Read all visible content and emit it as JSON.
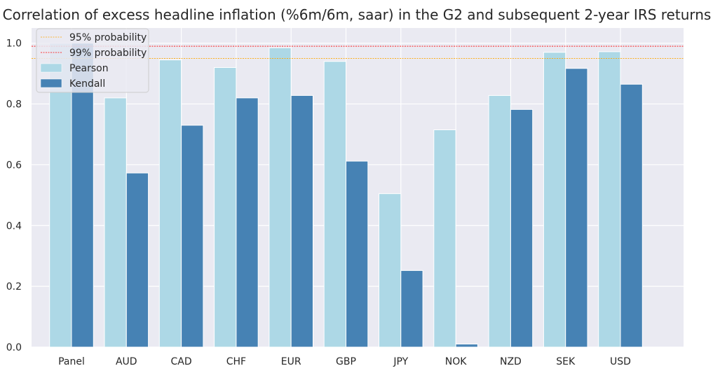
{
  "chart_data": {
    "type": "bar",
    "title": "Correlation of excess headline inflation (%6m/6m, saar) in the G2 and subsequent 2-year IRS returns",
    "xlabel": "",
    "ylabel": "",
    "categories": [
      "Panel",
      "AUD",
      "CAD",
      "CHF",
      "EUR",
      "GBP",
      "JPY",
      "NOK",
      "NZD",
      "SEK",
      "USD"
    ],
    "series": [
      {
        "name": "Pearson",
        "color": "#add8e6",
        "values": [
          1.0,
          0.82,
          0.945,
          0.92,
          0.985,
          0.94,
          0.505,
          0.715,
          0.828,
          0.97,
          0.972
        ]
      },
      {
        "name": "Kendall",
        "color": "#4682b4",
        "values": [
          1.0,
          0.573,
          0.73,
          0.82,
          0.828,
          0.612,
          0.252,
          0.01,
          0.782,
          0.917,
          0.865
        ]
      }
    ],
    "reference_lines": [
      {
        "name": "95% probability",
        "value": 0.95,
        "color": "#ffa500"
      },
      {
        "name": "99% probability",
        "value": 0.99,
        "color": "#ff0000"
      }
    ],
    "ylim": [
      0,
      1.05
    ],
    "yticks": [
      "0.0",
      "0.2",
      "0.4",
      "0.6",
      "0.8",
      "1.0"
    ],
    "grid": true,
    "legend_position": "top-left",
    "background_color": "#eaeaf2"
  }
}
